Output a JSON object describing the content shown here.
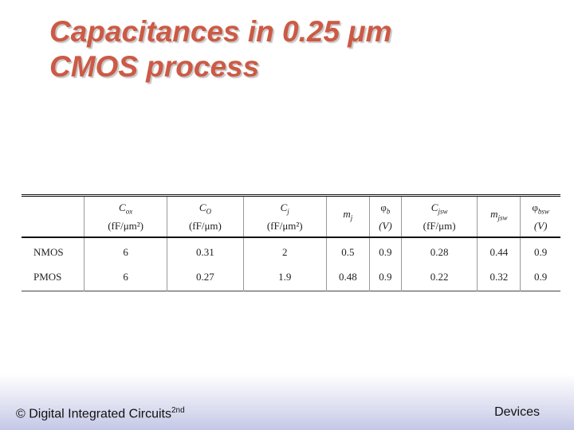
{
  "title": {
    "lines": [
      "Capacitances in 0.25 μm",
      "CMOS process"
    ]
  },
  "table": {
    "header": [
      {
        "symbol": "C",
        "sub": "ox",
        "unit": "(fF/μm²)"
      },
      {
        "symbol": "C",
        "sub": "O",
        "unit": "(fF/μm)"
      },
      {
        "symbol": "C",
        "sub": "j",
        "unit": "(fF/μm²)"
      },
      {
        "symbol": "m",
        "sub": "j"
      },
      {
        "symbol": "φ",
        "sub": "b",
        "unit": "(V)"
      },
      {
        "symbol": "C",
        "sub": "jsw",
        "unit": "(fF/μm)"
      },
      {
        "symbol": "m",
        "sub": "jsw"
      },
      {
        "symbol": "φ",
        "sub": "bsw",
        "unit": "(V)"
      }
    ],
    "rows": [
      [
        "NMOS",
        6,
        0.31,
        2,
        0.5,
        0.9,
        0.28,
        0.44,
        0.9
      ],
      [
        "PMOS",
        6,
        0.27,
        1.9,
        0.48,
        0.9,
        0.22,
        0.32,
        0.9
      ]
    ]
  },
  "footer": {
    "left": "© Digital Integrated Circuits",
    "left_sup": "2nd",
    "right": "Devices"
  }
}
